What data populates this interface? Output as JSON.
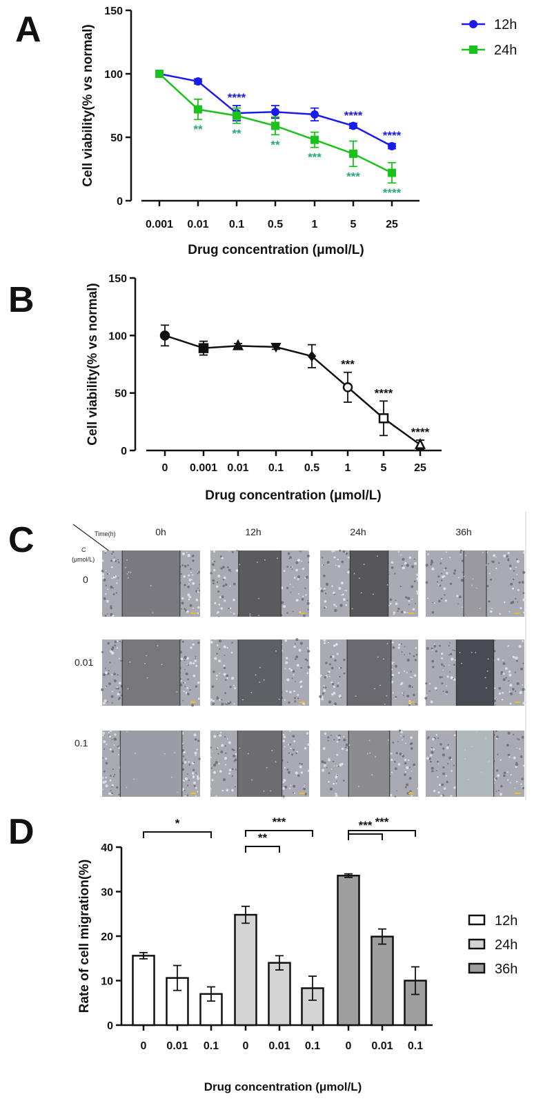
{
  "panels": {
    "a": {
      "letter": "A"
    },
    "b": {
      "letter": "B"
    },
    "c": {
      "letter": "C"
    },
    "d": {
      "letter": "D"
    }
  },
  "colors": {
    "blue": "#1a1aee",
    "green": "#1bc21b",
    "green_sig": "#2aa87a",
    "black": "#111111",
    "bar_12h": "#ffffff",
    "bar_24h": "#d4d4d4",
    "bar_36h": "#9e9e9e"
  },
  "chart_data": [
    {
      "type": "line",
      "panel": "A",
      "title": "",
      "xlabel": "Drug concentration (μmol/L)",
      "ylabel": "Cell viability(% vs normal)",
      "categories": [
        "0.001",
        "0.01",
        "0.1",
        "0.5",
        "1",
        "5",
        "25"
      ],
      "ylim": [
        0,
        150
      ],
      "yticks": [
        0,
        50,
        100,
        150
      ],
      "legend_position": "top-right",
      "series": [
        {
          "name": "12h",
          "color": "#1a1aee",
          "marker": "circle",
          "values": [
            100,
            94,
            69,
            70,
            68,
            59,
            43
          ],
          "errors": [
            2,
            2,
            6,
            5,
            5,
            2,
            2
          ],
          "significance": [
            "",
            "",
            "****",
            "",
            "",
            "****",
            "****"
          ]
        },
        {
          "name": "24h",
          "color": "#1bc21b",
          "marker": "square",
          "values": [
            100,
            72,
            67,
            59,
            48,
            37,
            22
          ],
          "errors": [
            1,
            8,
            6,
            7,
            6,
            10,
            8
          ],
          "significance": [
            "",
            "**",
            "**",
            "**",
            "***",
            "***",
            "****"
          ]
        }
      ]
    },
    {
      "type": "line",
      "panel": "B",
      "title": "",
      "xlabel": "Drug concentration (μmol/L)",
      "ylabel": "Cell viability(% vs normal)",
      "categories": [
        "0",
        "0.001",
        "0.01",
        "0.1",
        "0.5",
        "1",
        "5",
        "25"
      ],
      "ylim": [
        0,
        150
      ],
      "yticks": [
        0,
        50,
        100,
        150
      ],
      "series": [
        {
          "color": "#111111",
          "markers": [
            "filled-circle",
            "filled-square",
            "filled-triangle-up",
            "filled-triangle-down",
            "filled-diamond",
            "open-circle",
            "open-square",
            "open-triangle-up"
          ],
          "values": [
            100,
            89,
            91,
            90,
            82,
            55,
            28,
            5
          ],
          "errors": [
            9,
            6,
            2,
            2,
            10,
            13,
            15,
            4
          ],
          "significance": [
            "",
            "",
            "",
            "",
            "",
            "***",
            "****",
            "****"
          ]
        }
      ]
    },
    {
      "type": "bar",
      "panel": "D",
      "title": "",
      "xlabel": "Drug concentration (μmol/L)",
      "ylabel": "Rate of cell migration(%)",
      "ylim": [
        0,
        40
      ],
      "yticks": [
        0,
        10,
        20,
        30,
        40
      ],
      "legend_position": "right",
      "groups": [
        {
          "name": "12h",
          "color": "#ffffff",
          "categories": [
            "0",
            "0.01",
            "0.1"
          ],
          "values": [
            15.6,
            10.6,
            7.0
          ],
          "errors": [
            0.7,
            2.8,
            1.6
          ]
        },
        {
          "name": "24h",
          "color": "#d4d4d4",
          "categories": [
            "0",
            "0.01",
            "0.1"
          ],
          "values": [
            24.8,
            14.0,
            8.3
          ],
          "errors": [
            1.9,
            1.6,
            2.7
          ]
        },
        {
          "name": "36h",
          "color": "#9e9e9e",
          "categories": [
            "0",
            "0.01",
            "0.1"
          ],
          "values": [
            33.6,
            19.9,
            10.0
          ],
          "errors": [
            0.4,
            1.7,
            3.1
          ]
        }
      ],
      "brackets": [
        {
          "group": 0,
          "from": 0,
          "to": 2,
          "label": "*"
        },
        {
          "group": 1,
          "from": 0,
          "to": 1,
          "label": "**"
        },
        {
          "group": 1,
          "from": 0,
          "to": 2,
          "label": "***"
        },
        {
          "group": 2,
          "from": 0,
          "to": 1,
          "label": "***"
        },
        {
          "group": 2,
          "from": 0,
          "to": 2,
          "label": "***"
        }
      ]
    }
  ],
  "panel_c": {
    "corner_header": "Time(h)",
    "corner_row_header_line1": "C",
    "corner_row_header_line2": "(μmol/L)",
    "time_headers": [
      "0h",
      "12h",
      "24h",
      "36h"
    ],
    "row_labels": [
      "0",
      "0.01",
      "0.1"
    ],
    "images": [
      [
        {
          "gap": 0.59,
          "tone": "#7a7a80"
        },
        {
          "gap": 0.43,
          "tone": "#5a5a5f"
        },
        {
          "gap": 0.39,
          "tone": "#56565b"
        },
        {
          "gap": 0.23,
          "tone": "#9a9aa0"
        }
      ],
      [
        {
          "gap": 0.59,
          "tone": "#77777c"
        },
        {
          "gap": 0.44,
          "tone": "#5f5f66"
        },
        {
          "gap": 0.45,
          "tone": "#6a6a70"
        },
        {
          "gap": 0.38,
          "tone": "#4a4a52"
        }
      ],
      [
        {
          "gap": 0.63,
          "tone": "#9c9ca4"
        },
        {
          "gap": 0.45,
          "tone": "#6e6e72"
        },
        {
          "gap": 0.42,
          "tone": "#8c8c90"
        },
        {
          "gap": 0.38,
          "tone": "#b0b8bc"
        }
      ]
    ]
  }
}
